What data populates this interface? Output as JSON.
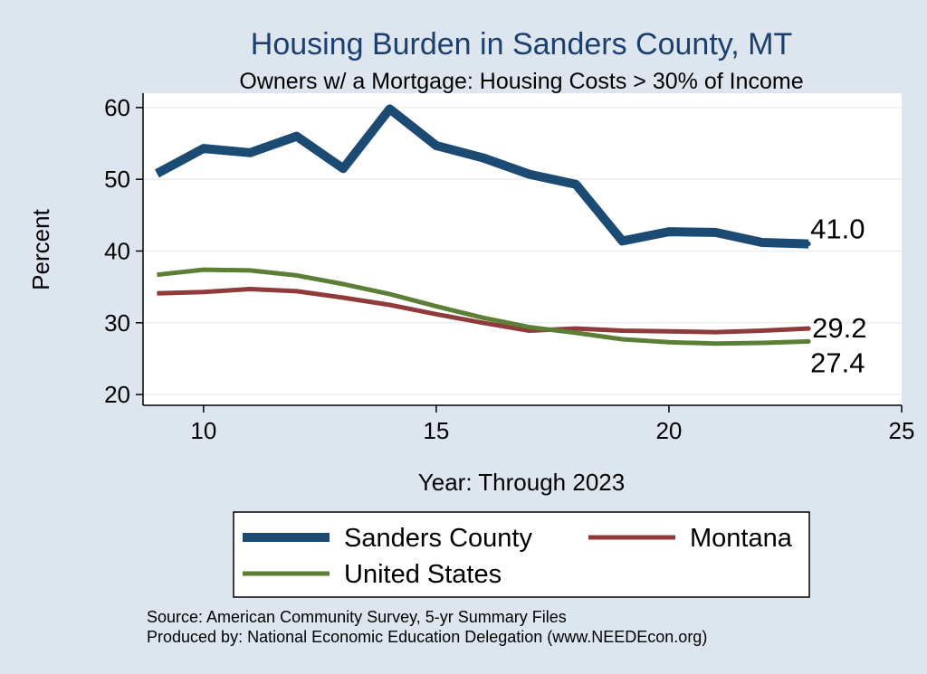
{
  "chart_data": {
    "type": "line",
    "title": "Housing Burden in Sanders County, MT",
    "subtitle": "Owners w/ a Mortgage: Housing Costs > 30% of Income",
    "xlabel": "Year: Through 2023",
    "ylabel": "Percent",
    "xlim": [
      8.7,
      25
    ],
    "ylim": [
      18.5,
      62
    ],
    "xticks": [
      10,
      15,
      20,
      25
    ],
    "yticks": [
      20,
      30,
      40,
      50,
      60
    ],
    "grid": true,
    "legend_position": "bottom",
    "series": [
      {
        "name": "Sanders County",
        "color": "#1b4a72",
        "x": [
          9,
          10,
          11,
          12,
          13,
          14,
          15,
          16,
          17,
          18,
          19,
          20,
          21,
          22,
          23
        ],
        "values": [
          50.8,
          54.3,
          53.7,
          56.0,
          51.5,
          59.8,
          54.7,
          53.0,
          50.7,
          49.3,
          41.4,
          42.7,
          42.6,
          41.2,
          41.0
        ],
        "end_label": "41.0"
      },
      {
        "name": "Montana",
        "color": "#8f3b3b",
        "x": [
          9,
          10,
          11,
          12,
          13,
          14,
          15,
          16,
          17,
          18,
          19,
          20,
          21,
          22,
          23
        ],
        "values": [
          34.1,
          34.3,
          34.7,
          34.4,
          33.5,
          32.5,
          31.2,
          30.0,
          28.9,
          29.2,
          28.9,
          28.8,
          28.7,
          28.9,
          29.2
        ],
        "end_label": "29.2"
      },
      {
        "name": "United States",
        "color": "#5c7f35",
        "x": [
          9,
          10,
          11,
          12,
          13,
          14,
          15,
          16,
          17,
          18,
          19,
          20,
          21,
          22,
          23
        ],
        "values": [
          36.7,
          37.4,
          37.3,
          36.6,
          35.4,
          34.0,
          32.3,
          30.7,
          29.4,
          28.6,
          27.7,
          27.3,
          27.1,
          27.2,
          27.4
        ],
        "end_label": "27.4"
      }
    ]
  },
  "footer": {
    "source": "Source: American Community Survey, 5-yr Summary Files",
    "produced_by": "Produced by: National Economic Education Delegation (www.NEEDEcon.org)"
  }
}
